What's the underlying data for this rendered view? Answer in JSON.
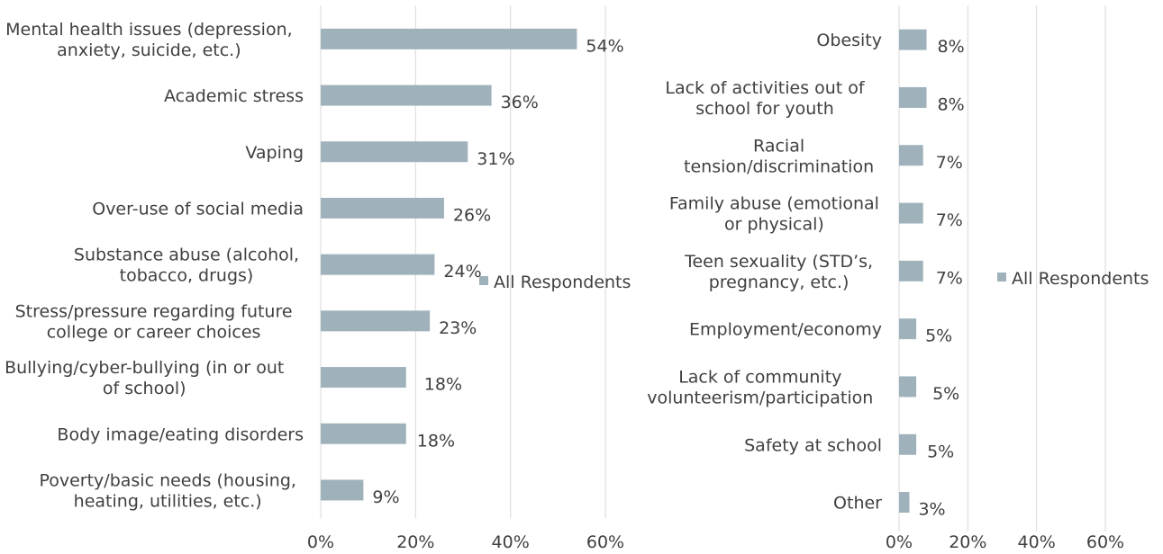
{
  "colors": {
    "bar": "#9fb2bc",
    "text": "#404040",
    "grid": "#d9d9d9"
  },
  "chart_data": [
    {
      "type": "bar",
      "orientation": "horizontal",
      "categories": [
        [
          "Mental health issues (depression,",
          "anxiety, suicide, etc.)"
        ],
        [
          "Academic stress"
        ],
        [
          "Vaping"
        ],
        [
          "Over-use of social media"
        ],
        [
          "Substance abuse (alcohol,",
          "tobacco, drugs)"
        ],
        [
          "Stress/pressure regarding future",
          "college or career choices"
        ],
        [
          "Bullying/cyber-bullying (in or out",
          "of school)"
        ],
        [
          "Body image/eating disorders"
        ],
        [
          "Poverty/basic needs (housing,",
          "heating, utilities, etc.)"
        ]
      ],
      "series": [
        {
          "name": "All Respondents",
          "values": [
            54,
            36,
            31,
            26,
            24,
            23,
            18,
            18,
            9
          ]
        }
      ],
      "value_labels": [
        "54%",
        "36%",
        "31%",
        "26%",
        "24%",
        "23%",
        "18%",
        "18%",
        "9%"
      ],
      "xlim": [
        0,
        60
      ],
      "xticks": [
        "0%",
        "20%",
        "40%",
        "60%"
      ],
      "grid": true,
      "legend": "right"
    },
    {
      "type": "bar",
      "orientation": "horizontal",
      "categories": [
        [
          "Obesity"
        ],
        [
          "Lack of activities out of",
          "school for youth"
        ],
        [
          "Racial",
          "tension/discrimination"
        ],
        [
          "Family abuse (emotional",
          "or physical)"
        ],
        [
          "Teen sexuality (STD’s,",
          "pregnancy, etc.)"
        ],
        [
          "Employment/economy"
        ],
        [
          "Lack of community",
          "volunteerism/participation"
        ],
        [
          "Safety at school"
        ],
        [
          "Other"
        ]
      ],
      "series": [
        {
          "name": "All Respondents",
          "values": [
            8,
            8,
            7,
            7,
            7,
            5,
            5,
            5,
            3
          ]
        }
      ],
      "value_labels": [
        "8%",
        "8%",
        "7%",
        "7%",
        "7%",
        "5%",
        "5%",
        "5%",
        "3%"
      ],
      "xlim": [
        0,
        60
      ],
      "xticks": [
        "0%",
        "20%",
        "40%",
        "60%"
      ],
      "grid": true,
      "legend": "right"
    }
  ]
}
